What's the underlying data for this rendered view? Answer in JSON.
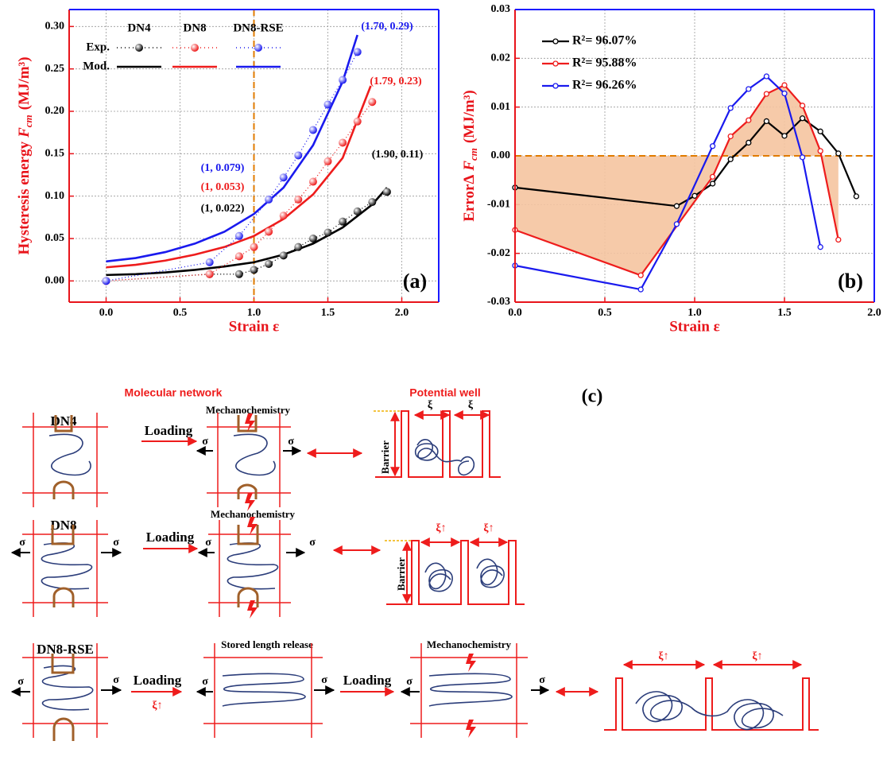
{
  "chart_data": [
    {
      "type": "scatter",
      "panel_label": "(a)",
      "xlabel": "Strain ε",
      "ylabel": "Hysteresis energy",
      "ylabel_var": "F",
      "ylabel_sub": "cm",
      "ylabel_unit": "(MJ/m³)",
      "xlim": [
        -0.25,
        2.25
      ],
      "ylim": [
        -0.025,
        0.32
      ],
      "xticks": [
        {
          "value": 0,
          "label": "0.0"
        },
        0.5,
        {
          "value": 1,
          "label": "1.0"
        },
        1.5,
        {
          "value": 2,
          "label": "2.0"
        }
      ],
      "yticks": [
        {
          "value": 0,
          "label": "0.00"
        },
        0.05,
        {
          "value": 0.1,
          "label": "0.10"
        },
        0.15,
        {
          "value": 0.2,
          "label": "0.20"
        },
        0.25,
        {
          "value": 0.3,
          "label": "0.30"
        }
      ],
      "grid": true,
      "vline": 1,
      "legend_rows": [
        "Exp.",
        "Mod."
      ],
      "series": [
        {
          "name": "DN4",
          "color": "#000000",
          "x": [
            0,
            0.7,
            0.9,
            1.0,
            1.1,
            1.2,
            1.3,
            1.4,
            1.5,
            1.6,
            1.7,
            1.8,
            1.9
          ],
          "values": [
            0,
            0.008,
            0.008,
            0.013,
            0.02,
            0.03,
            0.04,
            0.05,
            0.057,
            0.07,
            0.082,
            0.093,
            0.105
          ],
          "model_x": [
            0,
            0.2,
            0.4,
            0.6,
            0.8,
            1.0,
            1.2,
            1.4,
            1.6,
            1.8,
            1.9
          ],
          "model_values": [
            0.007,
            0.008,
            0.01,
            0.013,
            0.017,
            0.022,
            0.031,
            0.044,
            0.063,
            0.09,
            0.11
          ]
        },
        {
          "name": "DN8",
          "color": "#ee1c1c",
          "x": [
            0,
            0.7,
            0.9,
            1.0,
            1.1,
            1.2,
            1.3,
            1.4,
            1.5,
            1.6,
            1.7,
            1.8
          ],
          "values": [
            0,
            0.008,
            0.029,
            0.04,
            0.058,
            0.077,
            0.096,
            0.117,
            0.141,
            0.163,
            0.188,
            0.211
          ],
          "model_x": [
            0,
            0.2,
            0.4,
            0.6,
            0.8,
            1.0,
            1.2,
            1.4,
            1.6,
            1.79
          ],
          "model_values": [
            0.016,
            0.019,
            0.024,
            0.031,
            0.04,
            0.053,
            0.073,
            0.102,
            0.145,
            0.23
          ]
        },
        {
          "name": "DN8-RSE",
          "color": "#1a1aee",
          "x": [
            0,
            0.7,
            0.9,
            1.1,
            1.2,
            1.3,
            1.4,
            1.5,
            1.6,
            1.7
          ],
          "values": [
            0,
            0.022,
            0.053,
            0.096,
            0.122,
            0.148,
            0.178,
            0.208,
            0.237,
            0.27
          ],
          "model_x": [
            0,
            0.2,
            0.4,
            0.6,
            0.8,
            1.0,
            1.2,
            1.4,
            1.6,
            1.7
          ],
          "model_values": [
            0.023,
            0.027,
            0.034,
            0.044,
            0.058,
            0.079,
            0.11,
            0.16,
            0.235,
            0.29
          ]
        }
      ],
      "annotations": [
        {
          "text": "(1.70, 0.29)",
          "color": "#1a1aee"
        },
        {
          "text": "(1.79, 0.23)",
          "color": "#ee1c1c"
        },
        {
          "text": "(1, 0.079)",
          "color": "#1a1aee"
        },
        {
          "text": "(1, 0.053)",
          "color": "#ee1c1c"
        },
        {
          "text": "(1, 0.022)",
          "color": "#000000"
        },
        {
          "text": "(1.90, 0.11)",
          "color": "#000000"
        }
      ]
    },
    {
      "type": "line",
      "panel_label": "(b)",
      "xlabel": "Strain ε",
      "ylabel": "ErrorΔ",
      "ylabel_var": "F",
      "ylabel_sub": "cm",
      "ylabel_unit": "(MJ/m³)",
      "xlim": [
        0,
        2
      ],
      "ylim": [
        -0.03,
        0.03
      ],
      "xticks": [
        {
          "value": 0,
          "label": "0.0"
        },
        0.5,
        {
          "value": 1,
          "label": "1.0"
        },
        1.5,
        {
          "value": 2,
          "label": "2.0"
        }
      ],
      "yticks": [
        -0.03,
        -0.02,
        -0.01,
        {
          "value": 0,
          "label": "0.00"
        },
        0.01,
        0.02,
        0.03
      ],
      "grid": true,
      "hline": 0,
      "fill_color": "#f5c4a0",
      "series": [
        {
          "name": "R²= 96.07%",
          "color": "#000000",
          "x": [
            0,
            0.9,
            1.0,
            1.1,
            1.2,
            1.3,
            1.4,
            1.5,
            1.6,
            1.7,
            1.8,
            1.9
          ],
          "values": [
            -0.0065,
            -0.0103,
            -0.0082,
            -0.0057,
            -0.0007,
            0.0027,
            0.0071,
            0.0041,
            0.0077,
            0.005,
            0.0005,
            -0.0083
          ]
        },
        {
          "name": "R²= 95.88%",
          "color": "#ee1c1c",
          "fill": true,
          "x": [
            0,
            0.7,
            1.1,
            1.2,
            1.3,
            1.4,
            1.5,
            1.6,
            1.7,
            1.8
          ],
          "values": [
            -0.0152,
            -0.0245,
            -0.0043,
            0.004,
            0.0073,
            0.0127,
            0.0145,
            0.0103,
            0.001,
            -0.0172
          ]
        },
        {
          "name": "R²= 96.26%",
          "color": "#1a1aee",
          "x": [
            0,
            0.7,
            0.9,
            1.1,
            1.2,
            1.3,
            1.4,
            1.5,
            1.6,
            1.7
          ],
          "values": [
            -0.0225,
            -0.0274,
            -0.014,
            0.002,
            0.0098,
            0.0137,
            0.0163,
            0.0128,
            -0.0003,
            -0.0187
          ]
        }
      ]
    }
  ],
  "diagram": {
    "label": "(c)",
    "headers": [
      "Molecular network",
      "Potential well"
    ],
    "rows": [
      {
        "name": "DN4",
        "texts": [
          "Loading",
          "σ",
          "Mechanochemistry",
          "σ",
          "ξ",
          "ξ",
          "Barrier"
        ]
      },
      {
        "name": "DN8",
        "texts": [
          "σ",
          "σ",
          "Loading",
          "σ",
          "Mechanochemistry",
          "σ",
          "ξ↑",
          "ξ↑",
          "Barrier"
        ]
      },
      {
        "name": "DN8-RSE",
        "texts": [
          "σ",
          "σ",
          "Loading",
          "ξ↑",
          "σ",
          "Stored length release",
          "σ",
          "Loading",
          "σ",
          "Mechanochemistry",
          "σ",
          "ξ↑",
          "ξ↑"
        ]
      }
    ]
  }
}
